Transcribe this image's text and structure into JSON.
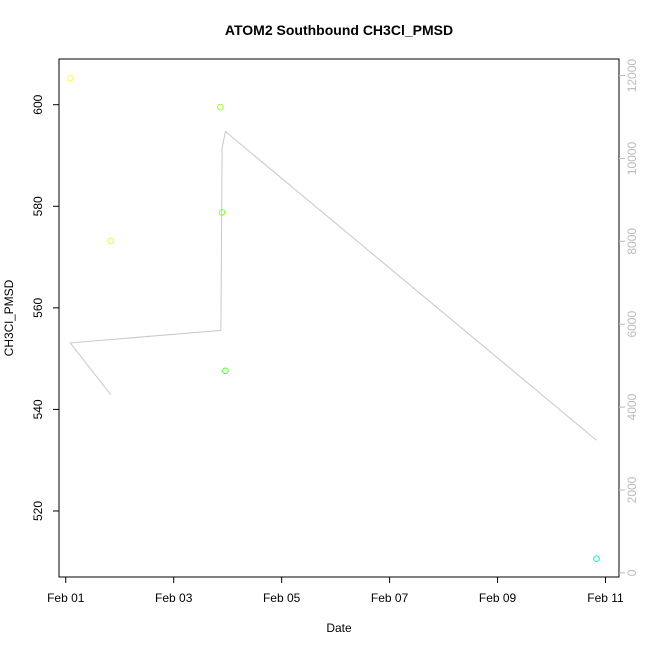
{
  "chart_data": {
    "type": "scatter",
    "title": "ATOM2 Southbound CH3Cl_PMSD",
    "xlabel": "Date",
    "ylabel": "CH3Cl_PMSD",
    "xlim": [
      "2024-01-31T21:00",
      "2024-02-11T06:00"
    ],
    "ylim": [
      507,
      609
    ],
    "y2lim": [
      -100,
      12400
    ],
    "x_ticks": [
      {
        "date": "2024-02-01T00:00",
        "label": "Feb 01"
      },
      {
        "date": "2024-02-03T00:00",
        "label": "Feb 03"
      },
      {
        "date": "2024-02-05T00:00",
        "label": "Feb 05"
      },
      {
        "date": "2024-02-07T00:00",
        "label": "Feb 07"
      },
      {
        "date": "2024-02-09T00:00",
        "label": "Feb 09"
      },
      {
        "date": "2024-02-11T00:00",
        "label": "Feb 11"
      }
    ],
    "y_ticks": [
      520,
      540,
      560,
      580,
      600
    ],
    "y2_ticks": [
      0,
      2000,
      4000,
      6000,
      8000,
      10000,
      12000
    ],
    "grid": false,
    "points": [
      {
        "x": "2024-02-01T02:00",
        "y": 605.2,
        "color": "#ffff33"
      },
      {
        "x": "2024-02-01T20:00",
        "y": 573.2,
        "color": "#ddff33"
      },
      {
        "x": "2024-02-03T20:45",
        "y": 599.5,
        "color": "#99ff33"
      },
      {
        "x": "2024-02-03T21:30",
        "y": 578.8,
        "color": "#77ff33"
      },
      {
        "x": "2024-02-03T23:00",
        "y": 547.6,
        "color": "#55ff33"
      },
      {
        "x": "2024-02-10T20:00",
        "y": 510.6,
        "color": "#33ddcc"
      }
    ],
    "secondary_line": {
      "color": "#c8c8c8",
      "values": [
        {
          "x": "2024-02-01T20:00",
          "y": 4300
        },
        {
          "x": "2024-02-01T02:00",
          "y": 5550
        },
        {
          "x": "2024-02-03T21:00",
          "y": 5850
        },
        {
          "x": "2024-02-03T21:30",
          "y": 10250
        },
        {
          "x": "2024-02-03T23:00",
          "y": 10650
        },
        {
          "x": "2024-02-10T20:00",
          "y": 3200
        }
      ]
    }
  }
}
